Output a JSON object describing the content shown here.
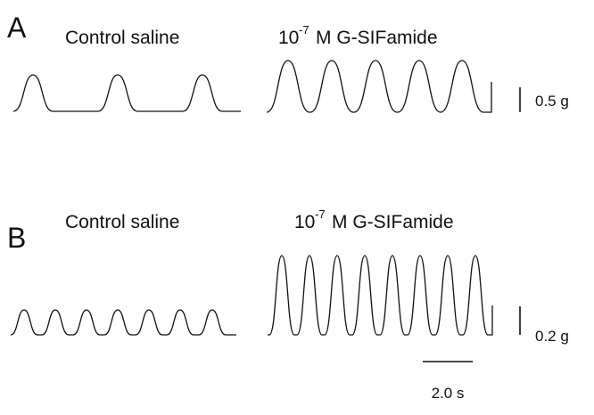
{
  "panel_a": {
    "letter": "A",
    "control_label": "Control saline",
    "treatment_base": "10",
    "treatment_exp": "-7",
    "treatment_rest": "M G-SIFamide",
    "scale_label": "0.5 g"
  },
  "panel_b": {
    "letter": "B",
    "control_label": "Control saline",
    "treatment_base": "10",
    "treatment_exp": "-7",
    "treatment_rest": "M G-SIFamide",
    "scale_label": "0.2 g",
    "time_label": "2.0 s"
  }
}
